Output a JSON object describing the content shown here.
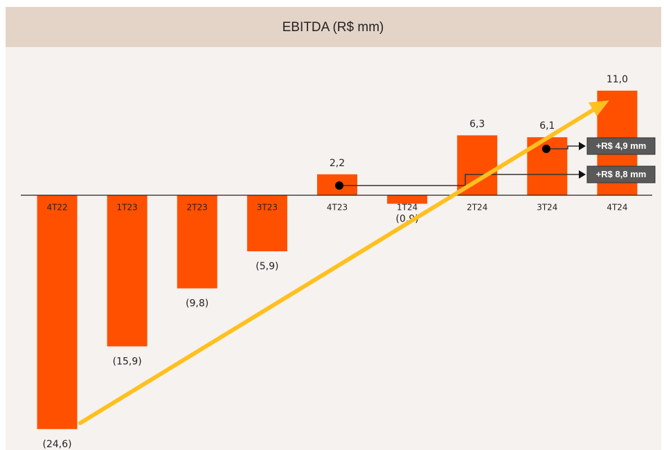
{
  "chart_data": {
    "type": "bar",
    "title": "EBITDA (R$ mm)",
    "categories": [
      "4T22",
      "1T23",
      "2T23",
      "3T23",
      "4T23",
      "1T24",
      "2T24",
      "3T24",
      "4T24"
    ],
    "values": [
      -24.6,
      -15.9,
      -9.8,
      -5.9,
      2.2,
      -0.9,
      6.3,
      6.1,
      11.0
    ],
    "value_labels": [
      "(24,6)",
      "(15,9)",
      "(9,8)",
      "(5,9)",
      "2,2",
      "(0,9)",
      "6,3",
      "6,1",
      "11,0"
    ],
    "color": "#ff5000",
    "ylim": [
      -26,
      12
    ],
    "annotations": [
      "+R$ 4,9 mm",
      "+R$ 8,8 mm"
    ]
  }
}
